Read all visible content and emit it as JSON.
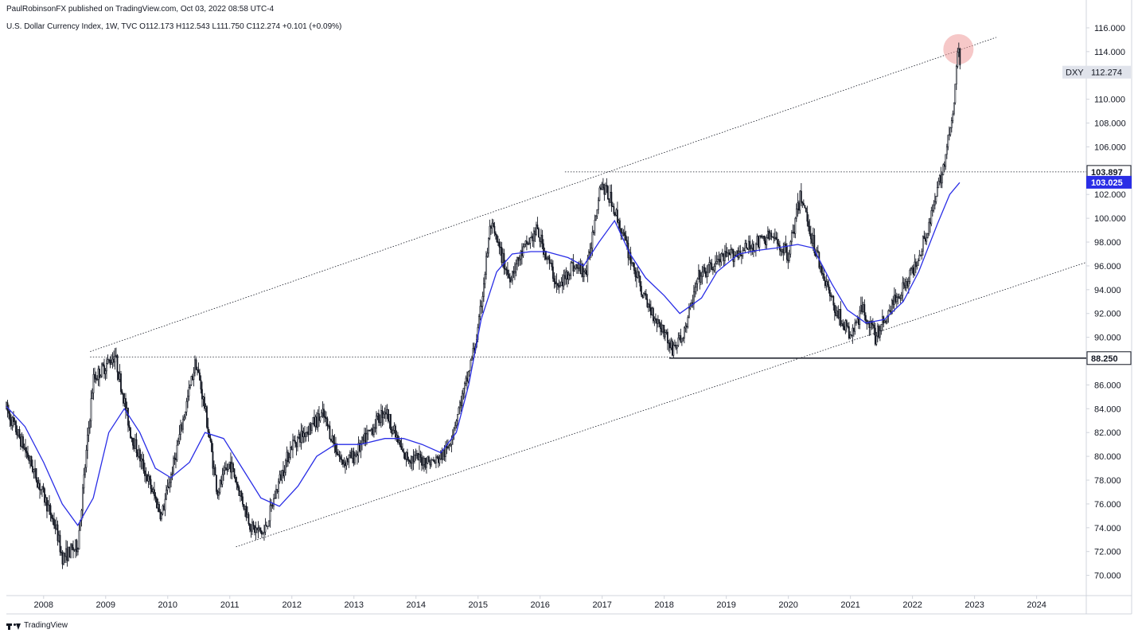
{
  "header": {
    "publisher": "PaulRobinsonFX published on TradingView.com, Oct 03, 2022 08:58 UTC-4",
    "legend": "U.S. Dollar Currency Index, 1W, TVC  O112.173  H112.543  L111.750  C112.274  +0.101 (+0.09%)"
  },
  "footer": {
    "brand": "TradingView",
    "logo_icon": "tradingview-logo-icon"
  },
  "chart_data": {
    "type": "candlestick",
    "symbol": "DXY",
    "timeframe": "1W",
    "x_ticks": [
      "2008",
      "2009",
      "2010",
      "2011",
      "2012",
      "2013",
      "2014",
      "2015",
      "2016",
      "2017",
      "2018",
      "2019",
      "2020",
      "2021",
      "2022",
      "2023",
      "2024"
    ],
    "y_ticks": [
      "70.000",
      "72.000",
      "74.000",
      "76.000",
      "78.000",
      "80.000",
      "82.000",
      "84.000",
      "86.000",
      "88.000",
      "90.000",
      "92.000",
      "94.000",
      "96.000",
      "98.000",
      "100.000",
      "102.000",
      "104.000",
      "106.000",
      "108.000",
      "110.000",
      "112.000",
      "114.000",
      "116.000"
    ],
    "xlim": [
      2007.4,
      2024.8
    ],
    "ylim": [
      68.3,
      117.0
    ],
    "price_path": [
      [
        2007.4,
        84.0
      ],
      [
        2007.75,
        80.0
      ],
      [
        2008.2,
        74.0
      ],
      [
        2008.3,
        71.5
      ],
      [
        2008.55,
        72.5
      ],
      [
        2008.8,
        86.5
      ],
      [
        2009.15,
        88.5
      ],
      [
        2009.4,
        82.0
      ],
      [
        2009.9,
        75.0
      ],
      [
        2010.1,
        79.5
      ],
      [
        2010.45,
        88.0
      ],
      [
        2010.6,
        84.0
      ],
      [
        2010.8,
        77.0
      ],
      [
        2011.0,
        79.5
      ],
      [
        2011.35,
        74.0
      ],
      [
        2011.55,
        73.5
      ],
      [
        2011.8,
        78.0
      ],
      [
        2012.0,
        81.0
      ],
      [
        2012.5,
        83.5
      ],
      [
        2012.8,
        79.5
      ],
      [
        2013.0,
        80.0
      ],
      [
        2013.5,
        84.0
      ],
      [
        2013.8,
        80.0
      ],
      [
        2014.3,
        79.5
      ],
      [
        2014.5,
        80.5
      ],
      [
        2014.8,
        86.0
      ],
      [
        2015.0,
        90.5
      ],
      [
        2015.2,
        99.5
      ],
      [
        2015.5,
        95.0
      ],
      [
        2015.75,
        97.5
      ],
      [
        2015.95,
        99.0
      ],
      [
        2016.3,
        94.0
      ],
      [
        2016.5,
        96.0
      ],
      [
        2016.75,
        95.5
      ],
      [
        2016.97,
        103.0
      ],
      [
        2017.15,
        101.5
      ],
      [
        2017.4,
        97.5
      ],
      [
        2017.7,
        93.0
      ],
      [
        2018.0,
        90.5
      ],
      [
        2018.12,
        89.0
      ],
      [
        2018.3,
        90.0
      ],
      [
        2018.55,
        95.0
      ],
      [
        2018.9,
        96.5
      ],
      [
        2019.35,
        97.5
      ],
      [
        2019.7,
        98.5
      ],
      [
        2020.0,
        97.0
      ],
      [
        2020.2,
        102.0
      ],
      [
        2020.4,
        98.0
      ],
      [
        2020.7,
        93.0
      ],
      [
        2021.0,
        90.0
      ],
      [
        2021.2,
        92.5
      ],
      [
        2021.4,
        90.0
      ],
      [
        2021.7,
        93.0
      ],
      [
        2022.0,
        95.5
      ],
      [
        2022.3,
        100.0
      ],
      [
        2022.5,
        104.5
      ],
      [
        2022.65,
        108.5
      ],
      [
        2022.74,
        114.8
      ],
      [
        2022.76,
        112.3
      ]
    ],
    "moving_average": [
      [
        2007.4,
        84.2
      ],
      [
        2007.7,
        82.5
      ],
      [
        2008.0,
        79.5
      ],
      [
        2008.3,
        76.0
      ],
      [
        2008.55,
        74.2
      ],
      [
        2008.8,
        76.5
      ],
      [
        2009.05,
        82.0
      ],
      [
        2009.3,
        84.0
      ],
      [
        2009.55,
        82.0
      ],
      [
        2009.8,
        79.0
      ],
      [
        2010.05,
        78.2
      ],
      [
        2010.35,
        79.5
      ],
      [
        2010.6,
        82.0
      ],
      [
        2010.9,
        81.5
      ],
      [
        2011.2,
        79.0
      ],
      [
        2011.5,
        76.5
      ],
      [
        2011.8,
        75.8
      ],
      [
        2012.1,
        77.5
      ],
      [
        2012.4,
        80.0
      ],
      [
        2012.7,
        81.0
      ],
      [
        2013.1,
        81.0
      ],
      [
        2013.5,
        81.5
      ],
      [
        2013.8,
        81.5
      ],
      [
        2014.1,
        81.0
      ],
      [
        2014.4,
        80.3
      ],
      [
        2014.65,
        82.0
      ],
      [
        2014.85,
        86.0
      ],
      [
        2015.05,
        91.5
      ],
      [
        2015.3,
        95.5
      ],
      [
        2015.55,
        97.0
      ],
      [
        2015.85,
        97.2
      ],
      [
        2016.1,
        97.2
      ],
      [
        2016.45,
        96.7
      ],
      [
        2016.7,
        96.0
      ],
      [
        2016.95,
        98.0
      ],
      [
        2017.2,
        99.8
      ],
      [
        2017.45,
        97.0
      ],
      [
        2017.7,
        95.0
      ],
      [
        2018.0,
        93.5
      ],
      [
        2018.25,
        92.0
      ],
      [
        2018.6,
        93.3
      ],
      [
        2018.85,
        95.5
      ],
      [
        2019.2,
        97.0
      ],
      [
        2019.5,
        97.3
      ],
      [
        2019.8,
        97.5
      ],
      [
        2020.15,
        97.8
      ],
      [
        2020.4,
        97.5
      ],
      [
        2020.7,
        94.5
      ],
      [
        2020.95,
        92.3
      ],
      [
        2021.25,
        91.2
      ],
      [
        2021.55,
        91.5
      ],
      [
        2021.85,
        93.0
      ],
      [
        2022.1,
        95.5
      ],
      [
        2022.4,
        99.5
      ],
      [
        2022.6,
        102.0
      ],
      [
        2022.76,
        103.0
      ]
    ],
    "series": [
      {
        "name": "DXY"
      }
    ],
    "price_labels": [
      {
        "id": "dxy",
        "prefix": "DXY",
        "value": "112.274",
        "style": "gray"
      },
      {
        "id": "hline-upper",
        "value": "103.897",
        "style": "outline"
      },
      {
        "id": "ma",
        "value": "103.025",
        "style": "blue"
      },
      {
        "id": "hline-lower",
        "value": "88.250",
        "style": "outline"
      }
    ],
    "horizontal_lines": [
      {
        "id": "resistance-line",
        "value": 103.897,
        "x_from": 2016.4,
        "style": "dotted"
      },
      {
        "id": "support-line",
        "value": 88.25,
        "x_from": 2018.08,
        "style": "solid"
      },
      {
        "id": "reference-line-2009",
        "value": 88.35,
        "x_from": 2008.75,
        "x_to": 2018.1,
        "style": "dotted"
      }
    ],
    "trend_lines": [
      {
        "id": "upper-channel",
        "points": [
          [
            2008.75,
            88.8
          ],
          [
            2023.35,
            115.2
          ]
        ]
      },
      {
        "id": "lower-channel",
        "points": [
          [
            2011.1,
            72.4
          ],
          [
            2024.8,
            96.3
          ]
        ]
      }
    ],
    "highlight": {
      "x": 2022.74,
      "y": 114.2
    },
    "colors": {
      "candles": "#131722",
      "ma": "#2a2ee6",
      "highlight": "#ef9a9a",
      "axis_text": "#131722"
    }
  }
}
